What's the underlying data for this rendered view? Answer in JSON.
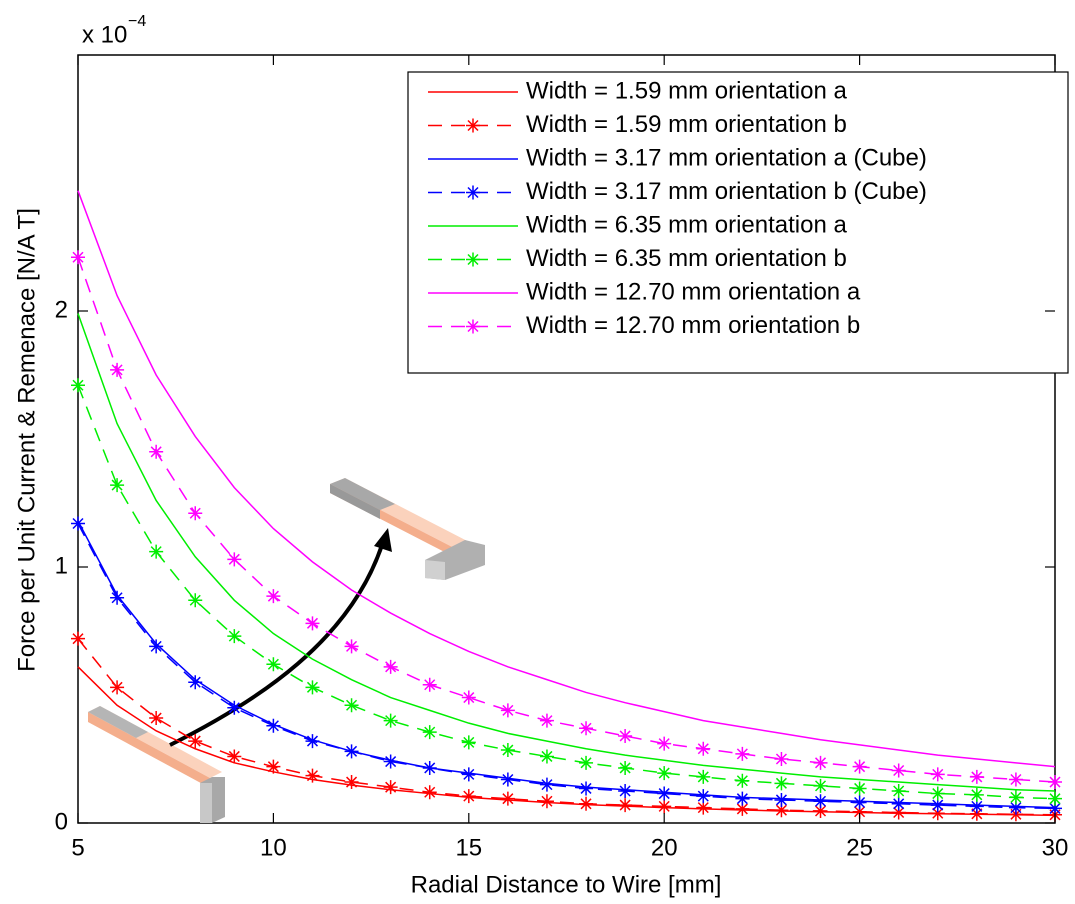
{
  "chart_data": {
    "type": "line",
    "x_label": "Radial Distance to Wire [mm]",
    "y_label": "Force per Unit Current & Remenace [N/A T]",
    "y_multiplier": "x 10",
    "y_multiplier_exponent": "−4",
    "x": [
      5,
      6,
      7,
      8,
      9,
      10,
      11,
      12,
      13,
      14,
      15,
      16,
      17,
      18,
      19,
      20,
      21,
      22,
      23,
      24,
      25,
      26,
      27,
      28,
      29,
      30
    ],
    "xlim": [
      5,
      30
    ],
    "xticks": [
      5,
      10,
      15,
      20,
      25,
      30
    ],
    "ylim": [
      0,
      3
    ],
    "yticks": [
      0,
      1,
      2
    ],
    "legend": "upper right",
    "series": [
      {
        "name": "Width = 1.59 mm orientation a",
        "color": "#ff0000",
        "style": "solid",
        "marker": "none",
        "values": [
          0.61,
          0.46,
          0.36,
          0.29,
          0.235,
          0.2,
          0.17,
          0.148,
          0.13,
          0.115,
          0.1,
          0.09,
          0.08,
          0.072,
          0.066,
          0.06,
          0.055,
          0.051,
          0.047,
          0.044,
          0.041,
          0.038,
          0.036,
          0.034,
          0.032,
          0.03
        ]
      },
      {
        "name": "Width = 1.59 mm orientation b",
        "color": "#ff0000",
        "style": "dashed",
        "marker": "star",
        "values": [
          0.72,
          0.53,
          0.41,
          0.32,
          0.26,
          0.22,
          0.185,
          0.16,
          0.14,
          0.12,
          0.105,
          0.095,
          0.085,
          0.075,
          0.07,
          0.065,
          0.06,
          0.055,
          0.05,
          0.047,
          0.044,
          0.041,
          0.038,
          0.036,
          0.034,
          0.032
        ]
      },
      {
        "name": "Width = 3.17 mm orientation a (Cube)",
        "color": "#0000ff",
        "style": "solid",
        "marker": "none",
        "values": [
          1.18,
          0.89,
          0.7,
          0.56,
          0.46,
          0.385,
          0.325,
          0.28,
          0.245,
          0.215,
          0.195,
          0.175,
          0.155,
          0.14,
          0.13,
          0.12,
          0.11,
          0.1,
          0.095,
          0.09,
          0.085,
          0.08,
          0.075,
          0.07,
          0.065,
          0.06
        ]
      },
      {
        "name": "Width = 3.17 mm orientation b (Cube)",
        "color": "#0000ff",
        "style": "dashed",
        "marker": "star",
        "values": [
          1.17,
          0.88,
          0.69,
          0.55,
          0.45,
          0.38,
          0.32,
          0.28,
          0.24,
          0.215,
          0.19,
          0.17,
          0.15,
          0.135,
          0.125,
          0.115,
          0.105,
          0.095,
          0.09,
          0.085,
          0.08,
          0.075,
          0.07,
          0.065,
          0.06,
          0.057
        ]
      },
      {
        "name": "Width = 6.35 mm orientation a",
        "color": "#00ee00",
        "style": "solid",
        "marker": "none",
        "values": [
          1.99,
          1.56,
          1.26,
          1.04,
          0.87,
          0.74,
          0.64,
          0.56,
          0.49,
          0.44,
          0.39,
          0.35,
          0.32,
          0.29,
          0.265,
          0.245,
          0.225,
          0.21,
          0.195,
          0.18,
          0.17,
          0.16,
          0.15,
          0.14,
          0.13,
          0.125
        ]
      },
      {
        "name": "Width = 6.35 mm orientation b",
        "color": "#00ee00",
        "style": "dashed",
        "marker": "star",
        "values": [
          1.71,
          1.32,
          1.06,
          0.87,
          0.73,
          0.62,
          0.53,
          0.46,
          0.4,
          0.355,
          0.315,
          0.285,
          0.26,
          0.235,
          0.215,
          0.195,
          0.18,
          0.165,
          0.155,
          0.145,
          0.135,
          0.125,
          0.115,
          0.11,
          0.1,
          0.095
        ]
      },
      {
        "name": "Width = 12.70 mm orientation a",
        "color": "#ff00ff",
        "style": "solid",
        "marker": "none",
        "values": [
          2.47,
          2.06,
          1.75,
          1.51,
          1.31,
          1.15,
          1.02,
          0.91,
          0.82,
          0.74,
          0.67,
          0.61,
          0.56,
          0.51,
          0.47,
          0.435,
          0.4,
          0.375,
          0.35,
          0.325,
          0.305,
          0.285,
          0.265,
          0.25,
          0.235,
          0.22
        ]
      },
      {
        "name": "Width = 12.70 mm orientation b",
        "color": "#ff00ff",
        "style": "dashed",
        "marker": "star",
        "values": [
          2.21,
          1.77,
          1.45,
          1.21,
          1.03,
          0.886,
          0.78,
          0.69,
          0.61,
          0.54,
          0.49,
          0.44,
          0.4,
          0.37,
          0.34,
          0.31,
          0.29,
          0.27,
          0.25,
          0.235,
          0.22,
          0.205,
          0.19,
          0.18,
          0.17,
          0.16
        ]
      }
    ]
  }
}
